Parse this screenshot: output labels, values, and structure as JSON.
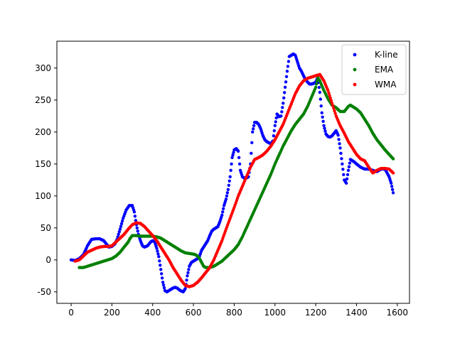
{
  "chart_data": {
    "type": "scatter",
    "title": "",
    "xlabel": "",
    "ylabel": "",
    "xlim": [
      -70,
      1660
    ],
    "ylim": [
      -68,
      342
    ],
    "xticks": [
      0,
      200,
      400,
      600,
      800,
      1000,
      1200,
      1400,
      1600
    ],
    "yticks": [
      -50,
      0,
      50,
      100,
      150,
      200,
      250,
      300
    ],
    "grid": false,
    "legend_position": "top-right",
    "series": [
      {
        "name": "K-line",
        "color": "#0000ff",
        "points": [
          [
            0,
            0
          ],
          [
            20,
            -1
          ],
          [
            40,
            2
          ],
          [
            60,
            8
          ],
          [
            80,
            22
          ],
          [
            100,
            32
          ],
          [
            120,
            33
          ],
          [
            140,
            33
          ],
          [
            160,
            30
          ],
          [
            175,
            24
          ],
          [
            185,
            20
          ],
          [
            200,
            21
          ],
          [
            215,
            25
          ],
          [
            225,
            32
          ],
          [
            240,
            48
          ],
          [
            255,
            65
          ],
          [
            270,
            78
          ],
          [
            285,
            85
          ],
          [
            300,
            85
          ],
          [
            310,
            75
          ],
          [
            320,
            55
          ],
          [
            330,
            40
          ],
          [
            340,
            30
          ],
          [
            350,
            22
          ],
          [
            360,
            20
          ],
          [
            375,
            22
          ],
          [
            390,
            28
          ],
          [
            400,
            30
          ],
          [
            410,
            28
          ],
          [
            420,
            18
          ],
          [
            430,
            5
          ],
          [
            440,
            -15
          ],
          [
            450,
            -35
          ],
          [
            460,
            -48
          ],
          [
            470,
            -50
          ],
          [
            480,
            -48
          ],
          [
            490,
            -46
          ],
          [
            500,
            -44
          ],
          [
            510,
            -43
          ],
          [
            520,
            -44
          ],
          [
            535,
            -48
          ],
          [
            550,
            -50
          ],
          [
            560,
            -45
          ],
          [
            570,
            -25
          ],
          [
            580,
            -10
          ],
          [
            590,
            -4
          ],
          [
            600,
            -2
          ],
          [
            610,
            0
          ],
          [
            620,
            2
          ],
          [
            630,
            6
          ],
          [
            640,
            15
          ],
          [
            650,
            20
          ],
          [
            660,
            25
          ],
          [
            670,
            30
          ],
          [
            680,
            38
          ],
          [
            690,
            45
          ],
          [
            700,
            48
          ],
          [
            710,
            50
          ],
          [
            720,
            52
          ],
          [
            730,
            60
          ],
          [
            740,
            70
          ],
          [
            750,
            85
          ],
          [
            760,
            95
          ],
          [
            770,
            110
          ],
          [
            780,
            130
          ],
          [
            790,
            160
          ],
          [
            800,
            172
          ],
          [
            810,
            174
          ],
          [
            820,
            170
          ],
          [
            830,
            140
          ],
          [
            840,
            130
          ],
          [
            850,
            128
          ],
          [
            860,
            128
          ],
          [
            870,
            130
          ],
          [
            880,
            150
          ],
          [
            890,
            200
          ],
          [
            900,
            215
          ],
          [
            910,
            215
          ],
          [
            920,
            212
          ],
          [
            930,
            205
          ],
          [
            940,
            195
          ],
          [
            950,
            188
          ],
          [
            960,
            185
          ],
          [
            970,
            183
          ],
          [
            980,
            182
          ],
          [
            990,
            186
          ],
          [
            1000,
            210
          ],
          [
            1010,
            228
          ],
          [
            1020,
            224
          ],
          [
            1030,
            225
          ],
          [
            1040,
            245
          ],
          [
            1050,
            270
          ],
          [
            1060,
            295
          ],
          [
            1070,
            318
          ],
          [
            1080,
            320
          ],
          [
            1090,
            322
          ],
          [
            1100,
            320
          ],
          [
            1110,
            310
          ],
          [
            1120,
            300
          ],
          [
            1130,
            295
          ],
          [
            1140,
            288
          ],
          [
            1150,
            282
          ],
          [
            1160,
            278
          ],
          [
            1170,
            275
          ],
          [
            1180,
            275
          ],
          [
            1190,
            276
          ],
          [
            1200,
            278
          ],
          [
            1210,
            285
          ],
          [
            1220,
            262
          ],
          [
            1230,
            230
          ],
          [
            1240,
            210
          ],
          [
            1250,
            197
          ],
          [
            1260,
            193
          ],
          [
            1270,
            192
          ],
          [
            1280,
            194
          ],
          [
            1290,
            198
          ],
          [
            1300,
            202
          ],
          [
            1310,
            195
          ],
          [
            1320,
            175
          ],
          [
            1330,
            150
          ],
          [
            1340,
            125
          ],
          [
            1350,
            120
          ],
          [
            1360,
            140
          ],
          [
            1370,
            157
          ],
          [
            1380,
            155
          ],
          [
            1390,
            153
          ],
          [
            1400,
            150
          ],
          [
            1420,
            145
          ],
          [
            1440,
            142
          ],
          [
            1460,
            142
          ],
          [
            1480,
            140
          ],
          [
            1500,
            138
          ],
          [
            1510,
            140
          ],
          [
            1520,
            142
          ],
          [
            1540,
            142
          ],
          [
            1560,
            130
          ],
          [
            1570,
            120
          ],
          [
            1580,
            105
          ]
        ]
      },
      {
        "name": "EMA",
        "color": "#008000",
        "points": [
          [
            40,
            -12
          ],
          [
            60,
            -12
          ],
          [
            80,
            -10
          ],
          [
            100,
            -8
          ],
          [
            120,
            -6
          ],
          [
            140,
            -4
          ],
          [
            160,
            -2
          ],
          [
            180,
            0
          ],
          [
            200,
            2
          ],
          [
            220,
            6
          ],
          [
            240,
            12
          ],
          [
            260,
            20
          ],
          [
            280,
            28
          ],
          [
            290,
            34
          ],
          [
            300,
            38
          ],
          [
            320,
            38
          ],
          [
            340,
            37
          ],
          [
            360,
            37
          ],
          [
            380,
            37
          ],
          [
            400,
            37
          ],
          [
            420,
            36
          ],
          [
            440,
            34
          ],
          [
            460,
            30
          ],
          [
            480,
            26
          ],
          [
            500,
            22
          ],
          [
            520,
            18
          ],
          [
            540,
            14
          ],
          [
            560,
            11
          ],
          [
            580,
            10
          ],
          [
            600,
            9
          ],
          [
            610,
            8
          ],
          [
            620,
            6
          ],
          [
            630,
            2
          ],
          [
            640,
            -4
          ],
          [
            650,
            -10
          ],
          [
            660,
            -12
          ],
          [
            680,
            -12
          ],
          [
            700,
            -10
          ],
          [
            720,
            -6
          ],
          [
            740,
            -2
          ],
          [
            760,
            4
          ],
          [
            780,
            10
          ],
          [
            800,
            16
          ],
          [
            820,
            24
          ],
          [
            840,
            36
          ],
          [
            860,
            50
          ],
          [
            880,
            64
          ],
          [
            900,
            78
          ],
          [
            920,
            92
          ],
          [
            940,
            106
          ],
          [
            960,
            120
          ],
          [
            980,
            134
          ],
          [
            1000,
            150
          ],
          [
            1020,
            164
          ],
          [
            1040,
            178
          ],
          [
            1060,
            190
          ],
          [
            1080,
            202
          ],
          [
            1100,
            212
          ],
          [
            1120,
            220
          ],
          [
            1140,
            228
          ],
          [
            1160,
            240
          ],
          [
            1180,
            255
          ],
          [
            1200,
            270
          ],
          [
            1210,
            285
          ],
          [
            1220,
            280
          ],
          [
            1240,
            265
          ],
          [
            1260,
            252
          ],
          [
            1280,
            242
          ],
          [
            1300,
            238
          ],
          [
            1320,
            232
          ],
          [
            1340,
            232
          ],
          [
            1360,
            240
          ],
          [
            1370,
            242
          ],
          [
            1380,
            240
          ],
          [
            1400,
            236
          ],
          [
            1420,
            230
          ],
          [
            1440,
            220
          ],
          [
            1460,
            210
          ],
          [
            1480,
            198
          ],
          [
            1500,
            188
          ],
          [
            1520,
            180
          ],
          [
            1540,
            172
          ],
          [
            1560,
            165
          ],
          [
            1580,
            158
          ]
        ]
      },
      {
        "name": "WMA",
        "color": "#ff0000",
        "points": [
          [
            20,
            -2
          ],
          [
            40,
            0
          ],
          [
            60,
            6
          ],
          [
            80,
            12
          ],
          [
            100,
            15
          ],
          [
            120,
            18
          ],
          [
            140,
            20
          ],
          [
            160,
            21
          ],
          [
            180,
            21
          ],
          [
            200,
            22
          ],
          [
            220,
            28
          ],
          [
            240,
            34
          ],
          [
            260,
            40
          ],
          [
            280,
            48
          ],
          [
            300,
            55
          ],
          [
            320,
            58
          ],
          [
            340,
            57
          ],
          [
            360,
            52
          ],
          [
            380,
            45
          ],
          [
            400,
            38
          ],
          [
            420,
            30
          ],
          [
            440,
            20
          ],
          [
            460,
            10
          ],
          [
            480,
            0
          ],
          [
            500,
            -12
          ],
          [
            520,
            -22
          ],
          [
            540,
            -32
          ],
          [
            560,
            -40
          ],
          [
            580,
            -42
          ],
          [
            600,
            -40
          ],
          [
            620,
            -35
          ],
          [
            640,
            -28
          ],
          [
            660,
            -20
          ],
          [
            680,
            -12
          ],
          [
            700,
            0
          ],
          [
            720,
            15
          ],
          [
            740,
            30
          ],
          [
            760,
            48
          ],
          [
            780,
            65
          ],
          [
            800,
            82
          ],
          [
            820,
            100
          ],
          [
            840,
            115
          ],
          [
            860,
            130
          ],
          [
            880,
            145
          ],
          [
            900,
            157
          ],
          [
            920,
            160
          ],
          [
            940,
            164
          ],
          [
            960,
            170
          ],
          [
            980,
            178
          ],
          [
            1000,
            188
          ],
          [
            1020,
            200
          ],
          [
            1040,
            212
          ],
          [
            1060,
            228
          ],
          [
            1080,
            244
          ],
          [
            1100,
            260
          ],
          [
            1120,
            272
          ],
          [
            1140,
            280
          ],
          [
            1160,
            284
          ],
          [
            1180,
            286
          ],
          [
            1200,
            288
          ],
          [
            1220,
            290
          ],
          [
            1240,
            280
          ],
          [
            1260,
            265
          ],
          [
            1280,
            245
          ],
          [
            1300,
            225
          ],
          [
            1320,
            210
          ],
          [
            1340,
            198
          ],
          [
            1360,
            185
          ],
          [
            1380,
            175
          ],
          [
            1400,
            165
          ],
          [
            1420,
            158
          ],
          [
            1440,
            155
          ],
          [
            1460,
            145
          ],
          [
            1480,
            136
          ],
          [
            1500,
            140
          ],
          [
            1520,
            143
          ],
          [
            1540,
            143
          ],
          [
            1560,
            142
          ],
          [
            1580,
            136
          ]
        ]
      }
    ]
  }
}
